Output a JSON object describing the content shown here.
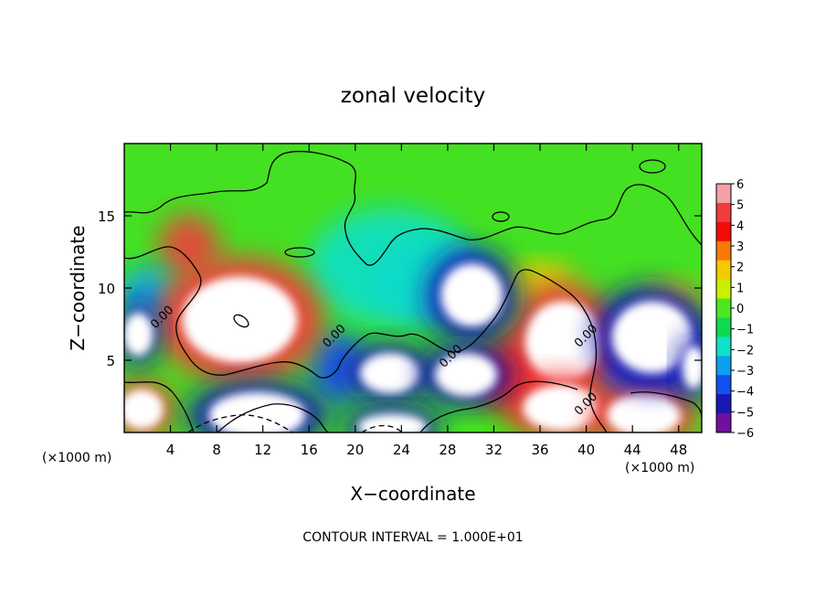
{
  "chart_data": {
    "type": "heatmap",
    "title": "zonal velocity",
    "xlabel": "X−coordinate",
    "ylabel": "Z−coordinate",
    "x_unit_label_left": "(×1000 m)",
    "x_unit_label_right": "(×1000 m)",
    "footer": "CONTOUR INTERVAL = 1.000E+01",
    "xlim": [
      0,
      50
    ],
    "ylim": [
      0,
      20
    ],
    "x_ticks": [
      4,
      8,
      12,
      16,
      20,
      24,
      28,
      32,
      36,
      40,
      44,
      48
    ],
    "x_tick_labels": [
      "4",
      "8",
      "12",
      "16",
      "20",
      "24",
      "28",
      "32",
      "36",
      "40",
      "44",
      "48"
    ],
    "y_ticks": [
      5,
      10,
      15
    ],
    "y_tick_labels": [
      "5",
      "10",
      "15"
    ],
    "colorbar": {
      "values": [
        6,
        5,
        4,
        3,
        2,
        1,
        0,
        -1,
        -2,
        -3,
        -4,
        -5,
        -6
      ],
      "labels": [
        "6",
        "5",
        "4",
        "3",
        "2",
        "1",
        "0",
        "−1",
        "−2",
        "−3",
        "−4",
        "−5",
        "−6"
      ],
      "colors": [
        "#f4a0a8",
        "#f03c3c",
        "#f50a0a",
        "#f57a0a",
        "#f5c800",
        "#c8f000",
        "#4ee620",
        "#10d850",
        "#10e0c8",
        "#0aa0f0",
        "#1450f0",
        "#1818b4",
        "#7010a0"
      ]
    },
    "contour_labels": [
      {
        "text": "0.00",
        "x": 3.5,
        "y": 7.8
      },
      {
        "text": "0.00",
        "x": 18.4,
        "y": 6.5
      },
      {
        "text": "0.00",
        "x": 28.5,
        "y": 5.1
      },
      {
        "text": "0.00",
        "x": 40.2,
        "y": 6.5
      },
      {
        "text": "0.00",
        "x": 40.2,
        "y": 1.8
      }
    ],
    "features": [
      {
        "value": 6,
        "x": 10.0,
        "y": 7.8,
        "rx": 5.0,
        "ry": 3.0
      },
      {
        "value": 6,
        "x": 38.0,
        "y": 6.3,
        "rx": 3.3,
        "ry": 2.8
      },
      {
        "value": 6,
        "x": 37.8,
        "y": 1.7,
        "rx": 3.3,
        "ry": 1.6
      },
      {
        "value": 6,
        "x": 45.0,
        "y": 1.2,
        "rx": 3.2,
        "ry": 1.5
      },
      {
        "value": 6,
        "x": 1.5,
        "y": 1.6,
        "rx": 1.9,
        "ry": 1.4
      },
      {
        "value": -6,
        "x": 30.1,
        "y": 9.5,
        "rx": 2.7,
        "ry": 2.2
      },
      {
        "value": -6,
        "x": 45.7,
        "y": 6.6,
        "rx": 3.5,
        "ry": 2.5
      },
      {
        "value": -6,
        "x": 11.5,
        "y": 1.2,
        "rx": 4.2,
        "ry": 1.6
      },
      {
        "value": -6,
        "x": 23.0,
        "y": 4.1,
        "rx": 2.6,
        "ry": 1.4
      },
      {
        "value": -6,
        "x": 29.6,
        "y": 4.0,
        "rx": 2.7,
        "ry": 1.5
      },
      {
        "value": -6,
        "x": 1.2,
        "y": 6.8,
        "rx": 1.3,
        "ry": 1.5
      },
      {
        "value": -6,
        "x": 23.2,
        "y": 0.4,
        "rx": 3.0,
        "ry": 0.9
      },
      {
        "value": -6,
        "x": 49.3,
        "y": 4.5,
        "rx": 1.0,
        "ry": 1.5
      },
      {
        "value": 5,
        "x": 5.6,
        "y": 12.9,
        "rx": 2.6,
        "ry": 2.2
      },
      {
        "value": -3,
        "x": 26.5,
        "y": 10.5,
        "rx": 5.0,
        "ry": 2.8
      },
      {
        "value": -2,
        "x": 23.0,
        "y": 11.5,
        "rx": 7.0,
        "ry": 4.0
      },
      {
        "value": -4,
        "x": 18.5,
        "y": 4.5,
        "rx": 2.5,
        "ry": 2.5
      },
      {
        "value": -4,
        "x": 45.0,
        "y": 5.0,
        "rx": 4.5,
        "ry": 3.5
      },
      {
        "value": 2,
        "x": 36.0,
        "y": 10.5,
        "rx": 3.0,
        "ry": 1.3
      },
      {
        "value": 2,
        "x": 47.5,
        "y": 9.0,
        "rx": 2.5,
        "ry": 1.5
      },
      {
        "value": -3,
        "x": 2.0,
        "y": 9.5,
        "rx": 2.5,
        "ry": 2.0
      },
      {
        "value": 4,
        "x": 34.0,
        "y": 4.0,
        "rx": 4.0,
        "ry": 2.5
      }
    ],
    "grid": false,
    "legend": "colorbar-right"
  }
}
